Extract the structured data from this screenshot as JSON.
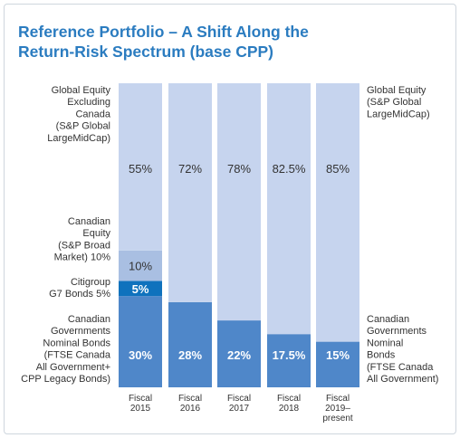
{
  "title_line1": "Reference Portfolio – A Shift Along the",
  "title_line2": "Return-Risk Spectrum (base CPP)",
  "chart_data": {
    "type": "bar",
    "stacked": true,
    "categories": [
      [
        "Fiscal",
        "2015"
      ],
      [
        "Fiscal",
        "2016"
      ],
      [
        "Fiscal",
        "2017"
      ],
      [
        "Fiscal",
        "2018"
      ],
      [
        "Fiscal",
        "2019–",
        "present"
      ]
    ],
    "series": [
      {
        "key": "bonds",
        "color": "#4f87c9",
        "values": [
          30,
          28,
          22,
          17.5,
          15
        ],
        "labels": [
          "30%",
          "28%",
          "22%",
          "17.5%",
          "15%"
        ]
      },
      {
        "key": "g7",
        "color": "#0f72bd",
        "values": [
          5,
          0,
          0,
          0,
          0
        ],
        "labels": [
          "5%",
          "",
          "",
          "",
          ""
        ]
      },
      {
        "key": "canadian",
        "color": "#a9bfe2",
        "values": [
          10,
          0,
          0,
          0,
          0
        ],
        "labels": [
          "10%",
          "",
          "",
          "",
          ""
        ]
      },
      {
        "key": "global",
        "color": "#c6d4ee",
        "values": [
          55,
          72,
          78,
          82.5,
          85
        ],
        "labels": [
          "55%",
          "72%",
          "78%",
          "82.5%",
          "85%"
        ]
      }
    ],
    "left_labels": {
      "global": [
        "Global Equity",
        "Excluding",
        "Canada",
        "(S&P Global",
        "LargeMidCap)"
      ],
      "canadian": [
        "Canadian",
        "Equity",
        "(S&P Broad",
        "Market) 10%"
      ],
      "g7": [
        "Citigroup",
        "G7 Bonds 5%"
      ],
      "bonds": [
        "Canadian",
        "Governments",
        "Nominal Bonds",
        "(FTSE Canada",
        "All Government+",
        "CPP Legacy Bonds)"
      ]
    },
    "right_labels": {
      "global": [
        "Global Equity",
        "(S&P Global",
        "LargeMidCap)"
      ],
      "bonds": [
        "Canadian",
        "Governments",
        "Nominal",
        "Bonds",
        "(FTSE Canada",
        "All Government)"
      ]
    },
    "ylim": [
      0,
      100
    ]
  }
}
